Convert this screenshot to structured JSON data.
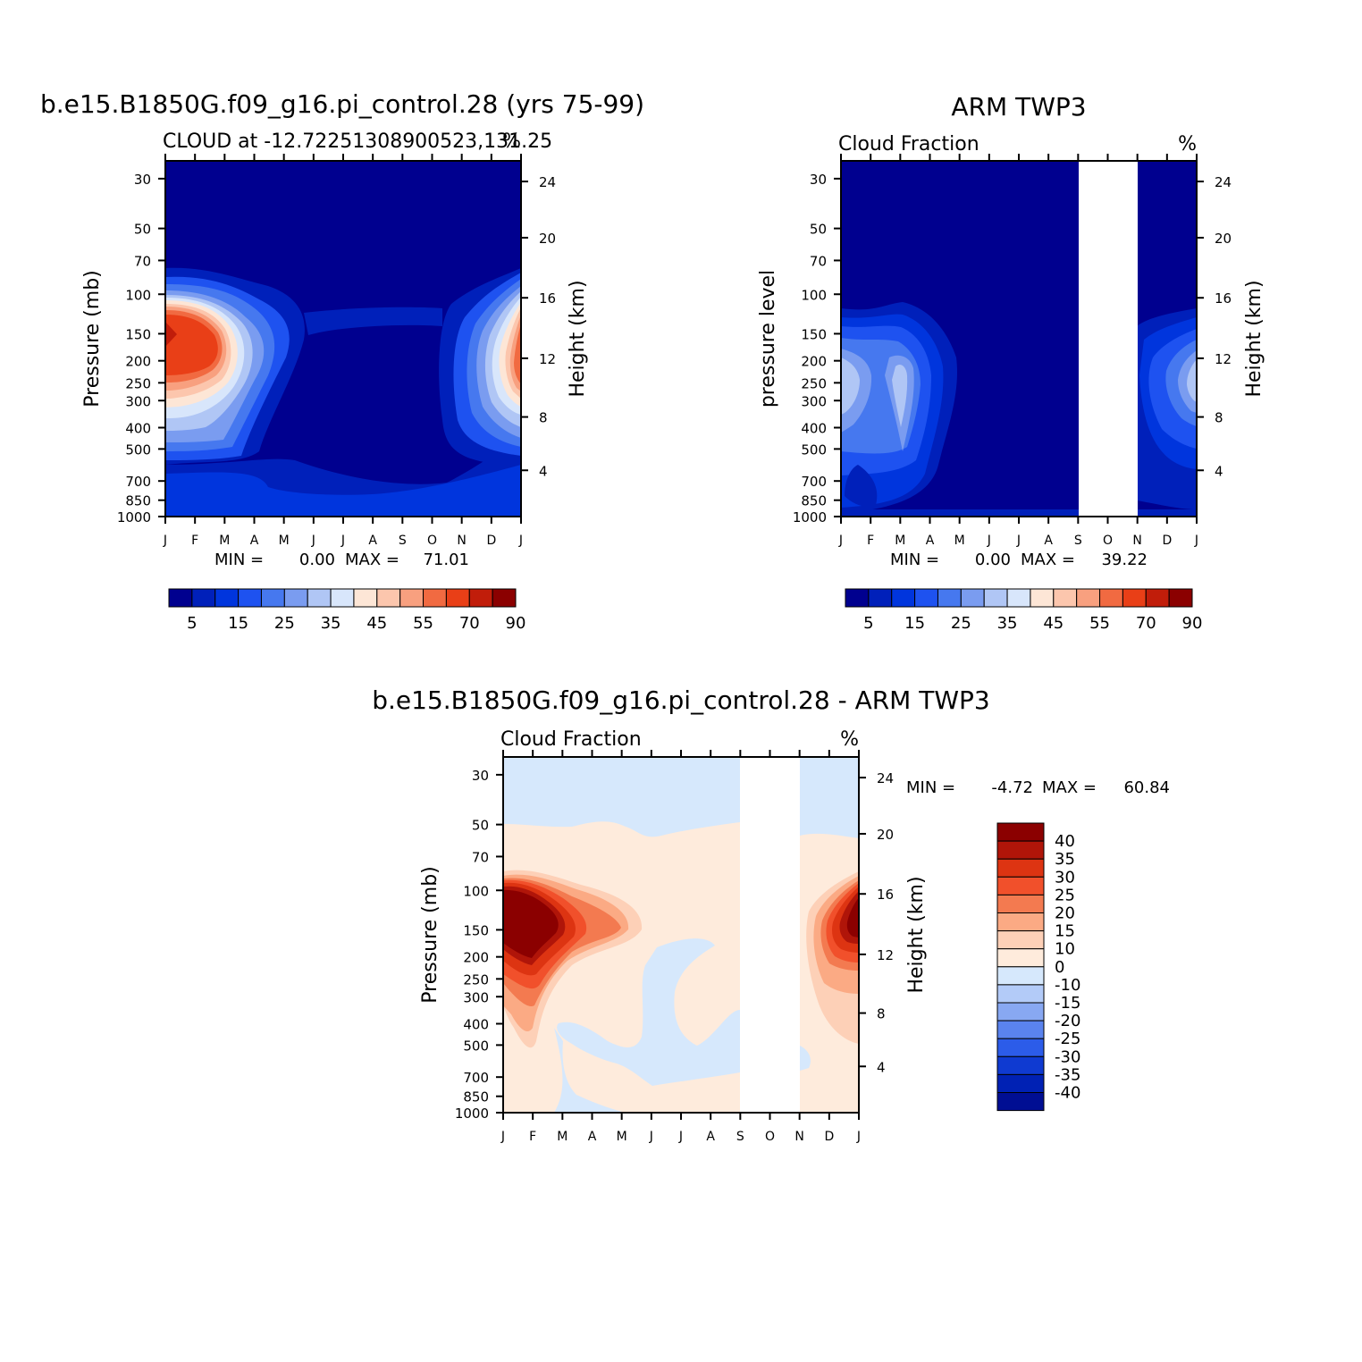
{
  "chart_data": [
    {
      "type": "heatmap",
      "title": "b.e15.B1850G.f09_g16.pi_control.28 (yrs 75-99)",
      "subtitle_left": "CLOUD at -12.72251308900523,131.25",
      "subtitle_right": "%",
      "ylabel": "Pressure (mb)",
      "ylabel_right": "Height (km)",
      "x_ticks": [
        "J",
        "F",
        "M",
        "A",
        "M",
        "J",
        "J",
        "A",
        "S",
        "O",
        "N",
        "D",
        "J"
      ],
      "y_ticks": [
        "30",
        "50",
        "70",
        "100",
        "150",
        "200",
        "250",
        "300",
        "400",
        "500",
        "700",
        "850",
        "1000"
      ],
      "y_ticks_right": [
        "24",
        "20",
        "16",
        "12",
        "8",
        "4"
      ],
      "stats": {
        "min_label": "MIN =",
        "min": "0.00",
        "max_label": "MAX =",
        "max": "71.01"
      },
      "colorbar": {
        "labels": [
          "5",
          "15",
          "25",
          "35",
          "45",
          "55",
          "70",
          "90"
        ]
      }
    },
    {
      "type": "heatmap",
      "title": "ARM TWP3",
      "subtitle_left": "Cloud Fraction",
      "subtitle_right": "%",
      "ylabel": "pressure level",
      "ylabel_right": "Height (km)",
      "x_ticks": [
        "J",
        "F",
        "M",
        "A",
        "M",
        "J",
        "J",
        "A",
        "S",
        "O",
        "N",
        "D",
        "J"
      ],
      "y_ticks": [
        "30",
        "50",
        "70",
        "100",
        "150",
        "200",
        "250",
        "300",
        "400",
        "500",
        "700",
        "850",
        "1000"
      ],
      "y_ticks_right": [
        "24",
        "20",
        "16",
        "12",
        "8",
        "4"
      ],
      "stats": {
        "min_label": "MIN =",
        "min": "0.00",
        "max_label": "MAX =",
        "max": "39.22"
      },
      "colorbar": {
        "labels": [
          "5",
          "15",
          "25",
          "35",
          "45",
          "55",
          "70",
          "90"
        ]
      },
      "missing_months": [
        "O"
      ]
    },
    {
      "type": "heatmap",
      "title": "b.e15.B1850G.f09_g16.pi_control.28 - ARM TWP3",
      "subtitle_left": "Cloud Fraction",
      "subtitle_right": "%",
      "ylabel": "Pressure (mb)",
      "ylabel_right": "Height (km)",
      "x_ticks": [
        "J",
        "F",
        "M",
        "A",
        "M",
        "J",
        "J",
        "A",
        "S",
        "O",
        "N",
        "D",
        "J"
      ],
      "y_ticks": [
        "30",
        "50",
        "70",
        "100",
        "150",
        "200",
        "250",
        "300",
        "400",
        "500",
        "700",
        "850",
        "1000"
      ],
      "y_ticks_right": [
        "24",
        "20",
        "16",
        "12",
        "8",
        "4"
      ],
      "stats": {
        "min_label": "MIN =",
        "min": "-4.72",
        "max_label": "MAX =",
        "max": "60.84"
      },
      "colorbar": {
        "labels": [
          "40",
          "35",
          "30",
          "25",
          "20",
          "15",
          "10",
          "0",
          "-10",
          "-15",
          "-20",
          "-25",
          "-30",
          "-35",
          "-40"
        ]
      },
      "missing_months": [
        "O"
      ]
    }
  ],
  "colors": {
    "abs_scale": [
      "#00008f",
      "#0020ba",
      "#0035dd",
      "#1e52f0",
      "#4678ef",
      "#7a9cf0",
      "#b0c6f5",
      "#d8e6fb",
      "#fde6d6",
      "#fcc6ad",
      "#f8a07f",
      "#f16a41",
      "#e93f17",
      "#c11d0a",
      "#8b0000"
    ],
    "diff_scale": [
      "#8b0000",
      "#b01509",
      "#dd3412",
      "#f1502b",
      "#f37a50",
      "#fbaa84",
      "#fdd0b7",
      "#feebdc",
      "#d6e8fc",
      "#b3cbf8",
      "#88a8f2",
      "#5a83ee",
      "#2c5ce9",
      "#0f3ad1",
      "#0021b4",
      "#000e93"
    ]
  }
}
